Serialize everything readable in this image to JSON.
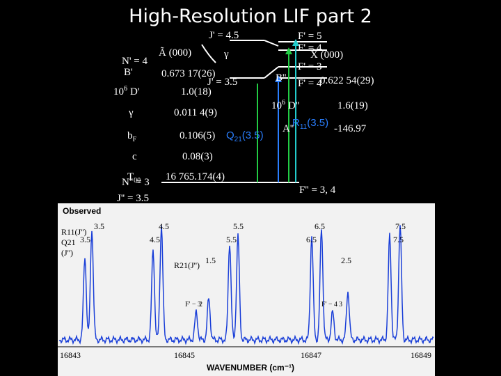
{
  "header": {
    "title": "High-Resolution LIF part 2"
  },
  "upper_state": {
    "j_upper": "J' = 4.5",
    "j_lower": "J' = 3.5",
    "state": "Ã (000)",
    "gamma_mark": "γ",
    "n": "N' = 4",
    "rows": [
      [
        "B'",
        "0.673 17(26)"
      ],
      [
        "10",
        "6",
        "D'",
        "1.0(18)"
      ],
      [
        "γ",
        "0.011 4(9)"
      ],
      [
        "b",
        "F",
        "0.106(5)"
      ],
      [
        "c",
        "0.08(3)"
      ],
      [
        "T",
        "00",
        "16 765.174(4)"
      ]
    ],
    "transition": {
      "main": "Q",
      "sub": "21",
      "rest": "(3.5)"
    }
  },
  "lower_state": {
    "n": "N'' = 3",
    "j": "J'' = 3.5",
    "f_levels": [
      "F' = 5",
      "F' = 4",
      "F' = 3",
      "F' = 4"
    ],
    "state": "X̃ (000)",
    "rows": [
      [
        "B''",
        "0.622 54(29)"
      ],
      [
        "10",
        "6",
        "D''",
        "1.6(19)"
      ],
      [
        "A''",
        "-146.97"
      ]
    ],
    "transition": {
      "main": "R",
      "sub": "11",
      "rest": "(3.5)"
    },
    "f_lower": "F'' = 3, 4"
  },
  "spectrum": {
    "panel_title": "Observed",
    "row_labels": [
      "R11(J'')",
      "Q21",
      "(J'')"
    ],
    "r11_labels": [
      "3.5",
      "4.5",
      "5.5",
      "6.5",
      "7.5"
    ],
    "q21_labels": [
      "3.5",
      "4.5",
      "5.5",
      "6.5",
      "7.5"
    ],
    "r21_label": "R21(J'')",
    "r21_values": [
      "1.5",
      "2.5"
    ],
    "f_labels": [
      "F' − 3",
      "2",
      "F' − 4",
      "3"
    ],
    "x_ticks": [
      "16843",
      "16845",
      "16847",
      "16849"
    ],
    "x_label": "WAVENUMBER (cm⁻¹)"
  }
}
